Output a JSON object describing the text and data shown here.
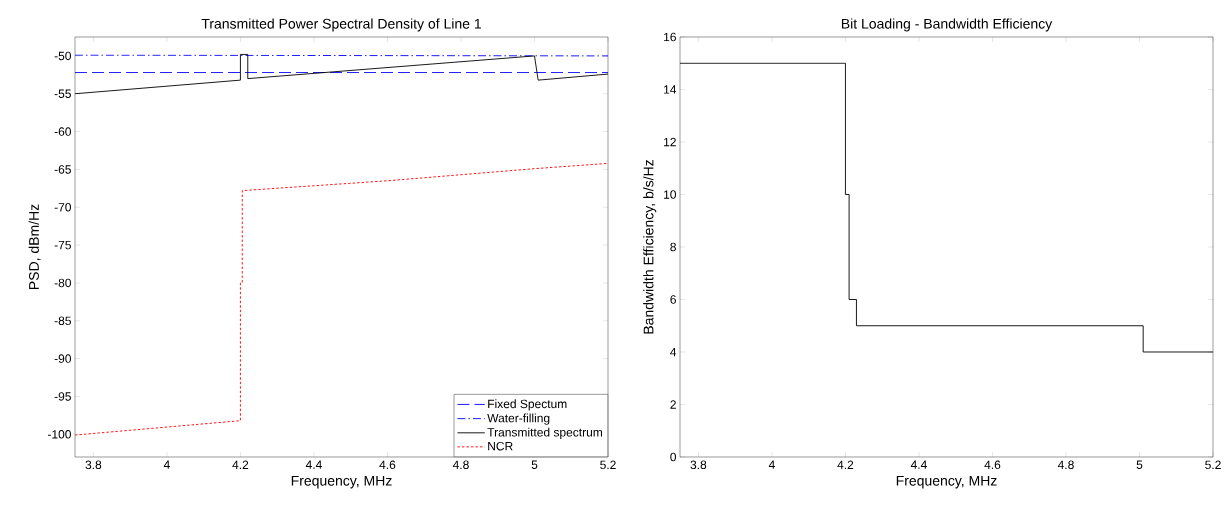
{
  "chart_data": [
    {
      "type": "line",
      "title": "Transmitted Power Spectral Density of Line 1",
      "xlabel": "Frequency, MHz",
      "ylabel": "PSD, dBm/Hz",
      "xlim": [
        3.75,
        5.2
      ],
      "ylim": [
        -103,
        -47.5
      ],
      "xticks": [
        3.8,
        4,
        4.2,
        4.4,
        4.6,
        4.8,
        5,
        5.2
      ],
      "yticks": [
        -100,
        -95,
        -90,
        -85,
        -80,
        -75,
        -70,
        -65,
        -60,
        -55,
        -50
      ],
      "legend": "bottom right",
      "grid": false,
      "series": [
        {
          "name": "Fixed Spectum",
          "color": "#0000ff",
          "line_style": "dashed",
          "x": [
            3.75,
            5.2
          ],
          "values": [
            -52.2,
            -52.2
          ]
        },
        {
          "name": "Water-filling",
          "color": "#0000ff",
          "line_style": "dashdot",
          "x": [
            3.75,
            5.2
          ],
          "values": [
            -49.9,
            -50
          ]
        },
        {
          "name": "Transmitted spectrum",
          "color": "#000000",
          "line_style": "solid",
          "x": [
            3.75,
            4.2,
            4.2,
            4.22,
            4.22,
            5.0,
            5.01,
            5.2
          ],
          "values": [
            -55,
            -53.2,
            -49.8,
            -49.8,
            -53,
            -50,
            -53.2,
            -52.4
          ]
        },
        {
          "name": "NCR",
          "color": "#ff0000",
          "line_style": "dotted",
          "x": [
            3.75,
            4.2,
            4.2,
            4.205,
            4.205,
            4.6,
            5.0,
            5.2
          ],
          "values": [
            -100.1,
            -98.2,
            -80,
            -80,
            -67.8,
            -66.5,
            -64.9,
            -64.2
          ]
        }
      ]
    },
    {
      "type": "step",
      "title": "Bit Loading - Bandwidth Efficiency",
      "xlabel": "Frequency, MHz",
      "ylabel": "Bandwidth Efficiency, b/s/Hz",
      "xlim": [
        3.75,
        5.2
      ],
      "ylim": [
        0,
        16
      ],
      "xticks": [
        3.8,
        4,
        4.2,
        4.4,
        4.6,
        4.8,
        5,
        5.2
      ],
      "yticks": [
        0,
        2,
        4,
        6,
        8,
        10,
        12,
        14,
        16
      ],
      "grid": false,
      "series": [
        {
          "color": "#000000",
          "line_style": "solid",
          "x": [
            3.75,
            4.2,
            4.21,
            4.23,
            5.01,
            5.2
          ],
          "values": [
            15,
            10,
            6,
            5,
            4,
            4
          ]
        }
      ]
    }
  ]
}
